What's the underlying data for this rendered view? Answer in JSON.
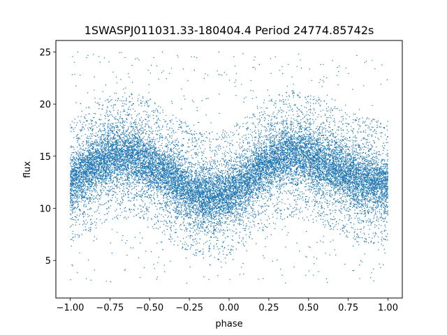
{
  "chart_data": {
    "type": "scatter",
    "title": "1SWASPJ011031.33-180404.4 Period 24774.85742s",
    "xlabel": "phase",
    "ylabel": "flux",
    "xlim": [
      -1.09,
      1.09
    ],
    "ylim": [
      1.4,
      26.1
    ],
    "xticks": [
      -1.0,
      -0.75,
      -0.5,
      -0.25,
      0.0,
      0.25,
      0.5,
      0.75,
      1.0
    ],
    "xtick_labels": [
      "−1.00",
      "−0.75",
      "−0.50",
      "−0.25",
      "0.00",
      "0.25",
      "0.50",
      "0.75",
      "1.00"
    ],
    "yticks": [
      5,
      10,
      15,
      20,
      25
    ],
    "ytick_labels": [
      "5",
      "10",
      "15",
      "20",
      "25"
    ],
    "grid": false,
    "marker_color": "#1f77b4",
    "series": [
      {
        "phase_range": [
          -1.0,
          1.0
        ],
        "mean_curve": {
          "x": [
            -1.0,
            -0.9,
            -0.8,
            -0.7,
            -0.6,
            -0.5,
            -0.4,
            -0.3,
            -0.2,
            -0.1,
            0.0,
            0.1,
            0.2,
            0.3,
            0.4,
            0.5,
            0.6,
            0.7,
            0.8,
            0.9,
            1.0
          ],
          "y": [
            12.3,
            13.6,
            14.6,
            15.1,
            15.0,
            14.3,
            13.3,
            12.3,
            11.4,
            11.0,
            11.4,
            12.5,
            13.8,
            14.8,
            15.2,
            14.9,
            14.3,
            13.6,
            12.9,
            12.5,
            12.3
          ]
        },
        "core_scatter_halfwidth": 2.6,
        "outlier_range": [
          2.8,
          25.0
        ]
      }
    ]
  }
}
